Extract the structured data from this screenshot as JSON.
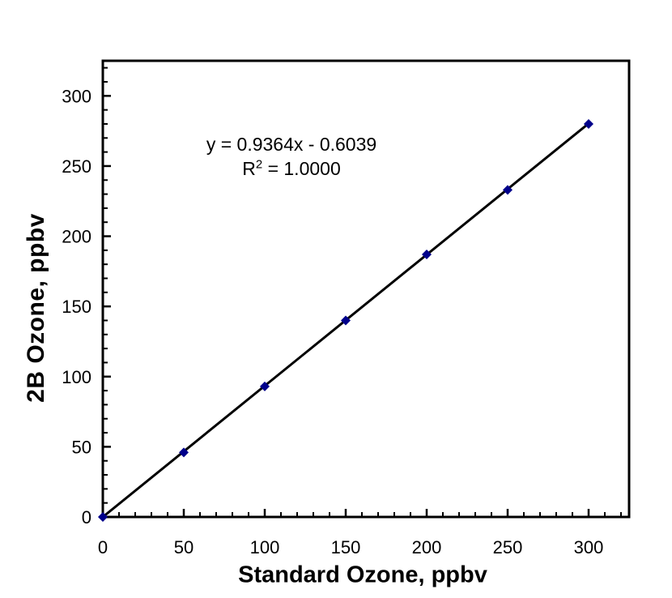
{
  "chart_data": {
    "type": "scatter",
    "title": "",
    "xlabel": "Standard Ozone, ppbv",
    "ylabel": "2B Ozone, ppbv",
    "xlim": [
      0,
      325
    ],
    "ylim": [
      0,
      325
    ],
    "x_ticks_major": [
      0,
      50,
      100,
      150,
      200,
      250,
      300
    ],
    "y_ticks_major": [
      0,
      50,
      100,
      150,
      200,
      250,
      300
    ],
    "minor_tick_step": 10,
    "grid": false,
    "legend": "none",
    "x": [
      0,
      50,
      100,
      150,
      200,
      250,
      300
    ],
    "y": [
      0,
      46,
      93,
      140,
      187,
      233,
      280
    ],
    "marker": {
      "shape": "diamond",
      "color": "#00008B",
      "size": 12
    },
    "trendline": {
      "slope": 0.9364,
      "intercept": -0.6039,
      "color": "#000000",
      "x_start": 0,
      "x_end": 300
    },
    "axis_color": "#000000",
    "text_color": "#000000",
    "background_color": "#ffffff",
    "annotation": {
      "equation": "y = 0.9364x - 0.6039",
      "r2_base": "R",
      "r2_sup": "2",
      "r2_rest": " = 1.0000"
    }
  }
}
